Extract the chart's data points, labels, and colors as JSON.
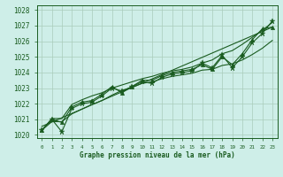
{
  "title": "Graphe pression niveau de la mer (hPa)",
  "bg_color": "#ceeee8",
  "grid_color": "#aaccbb",
  "line_color": "#1a5c20",
  "xlim": [
    -0.5,
    23.5
  ],
  "ylim": [
    1019.8,
    1028.3
  ],
  "yticks": [
    1020,
    1021,
    1022,
    1023,
    1024,
    1025,
    1026,
    1027,
    1028
  ],
  "xtick_labels": [
    "0",
    "1",
    "2",
    "3",
    "4",
    "5",
    "6",
    "7",
    "8",
    "9",
    "10",
    "11",
    "12",
    "13",
    "14",
    "15",
    "16",
    "17",
    "18",
    "19",
    "20",
    "21",
    "22",
    "23"
  ],
  "pressure_data": [
    1020.3,
    1021.0,
    1020.2,
    1021.7,
    1022.0,
    1022.1,
    1022.5,
    1023.0,
    1022.8,
    1023.1,
    1023.4,
    1023.3,
    1023.7,
    1023.9,
    1024.0,
    1024.1,
    1024.6,
    1024.3,
    1025.1,
    1024.3,
    1025.0,
    1025.9,
    1026.5,
    1027.3
  ],
  "secondary_data": [
    1020.3,
    1021.0,
    1020.8,
    1021.8,
    1022.1,
    1022.2,
    1022.6,
    1023.1,
    1022.7,
    1023.1,
    1023.5,
    1023.5,
    1023.8,
    1024.0,
    1024.1,
    1024.2,
    1024.5,
    1024.2,
    1025.0,
    1024.5,
    1025.2,
    1026.1,
    1026.8,
    1026.9
  ],
  "min_envelope": [
    1020.3,
    1020.85,
    1020.85,
    1021.35,
    1021.65,
    1021.95,
    1022.2,
    1022.55,
    1022.85,
    1023.05,
    1023.3,
    1023.4,
    1023.6,
    1023.75,
    1023.85,
    1023.95,
    1024.15,
    1024.2,
    1024.45,
    1024.55,
    1024.8,
    1025.15,
    1025.55,
    1026.05
  ],
  "max_envelope": [
    1020.3,
    1021.05,
    1021.05,
    1021.95,
    1022.25,
    1022.5,
    1022.7,
    1023.0,
    1023.2,
    1023.4,
    1023.6,
    1023.75,
    1023.95,
    1024.1,
    1024.2,
    1024.35,
    1024.6,
    1024.8,
    1025.2,
    1025.4,
    1025.8,
    1026.25,
    1026.7,
    1027.2
  ],
  "trend_x": [
    0,
    23
  ],
  "trend_y": [
    1020.55,
    1026.9
  ],
  "figsize": [
    3.2,
    2.0
  ],
  "dpi": 100
}
